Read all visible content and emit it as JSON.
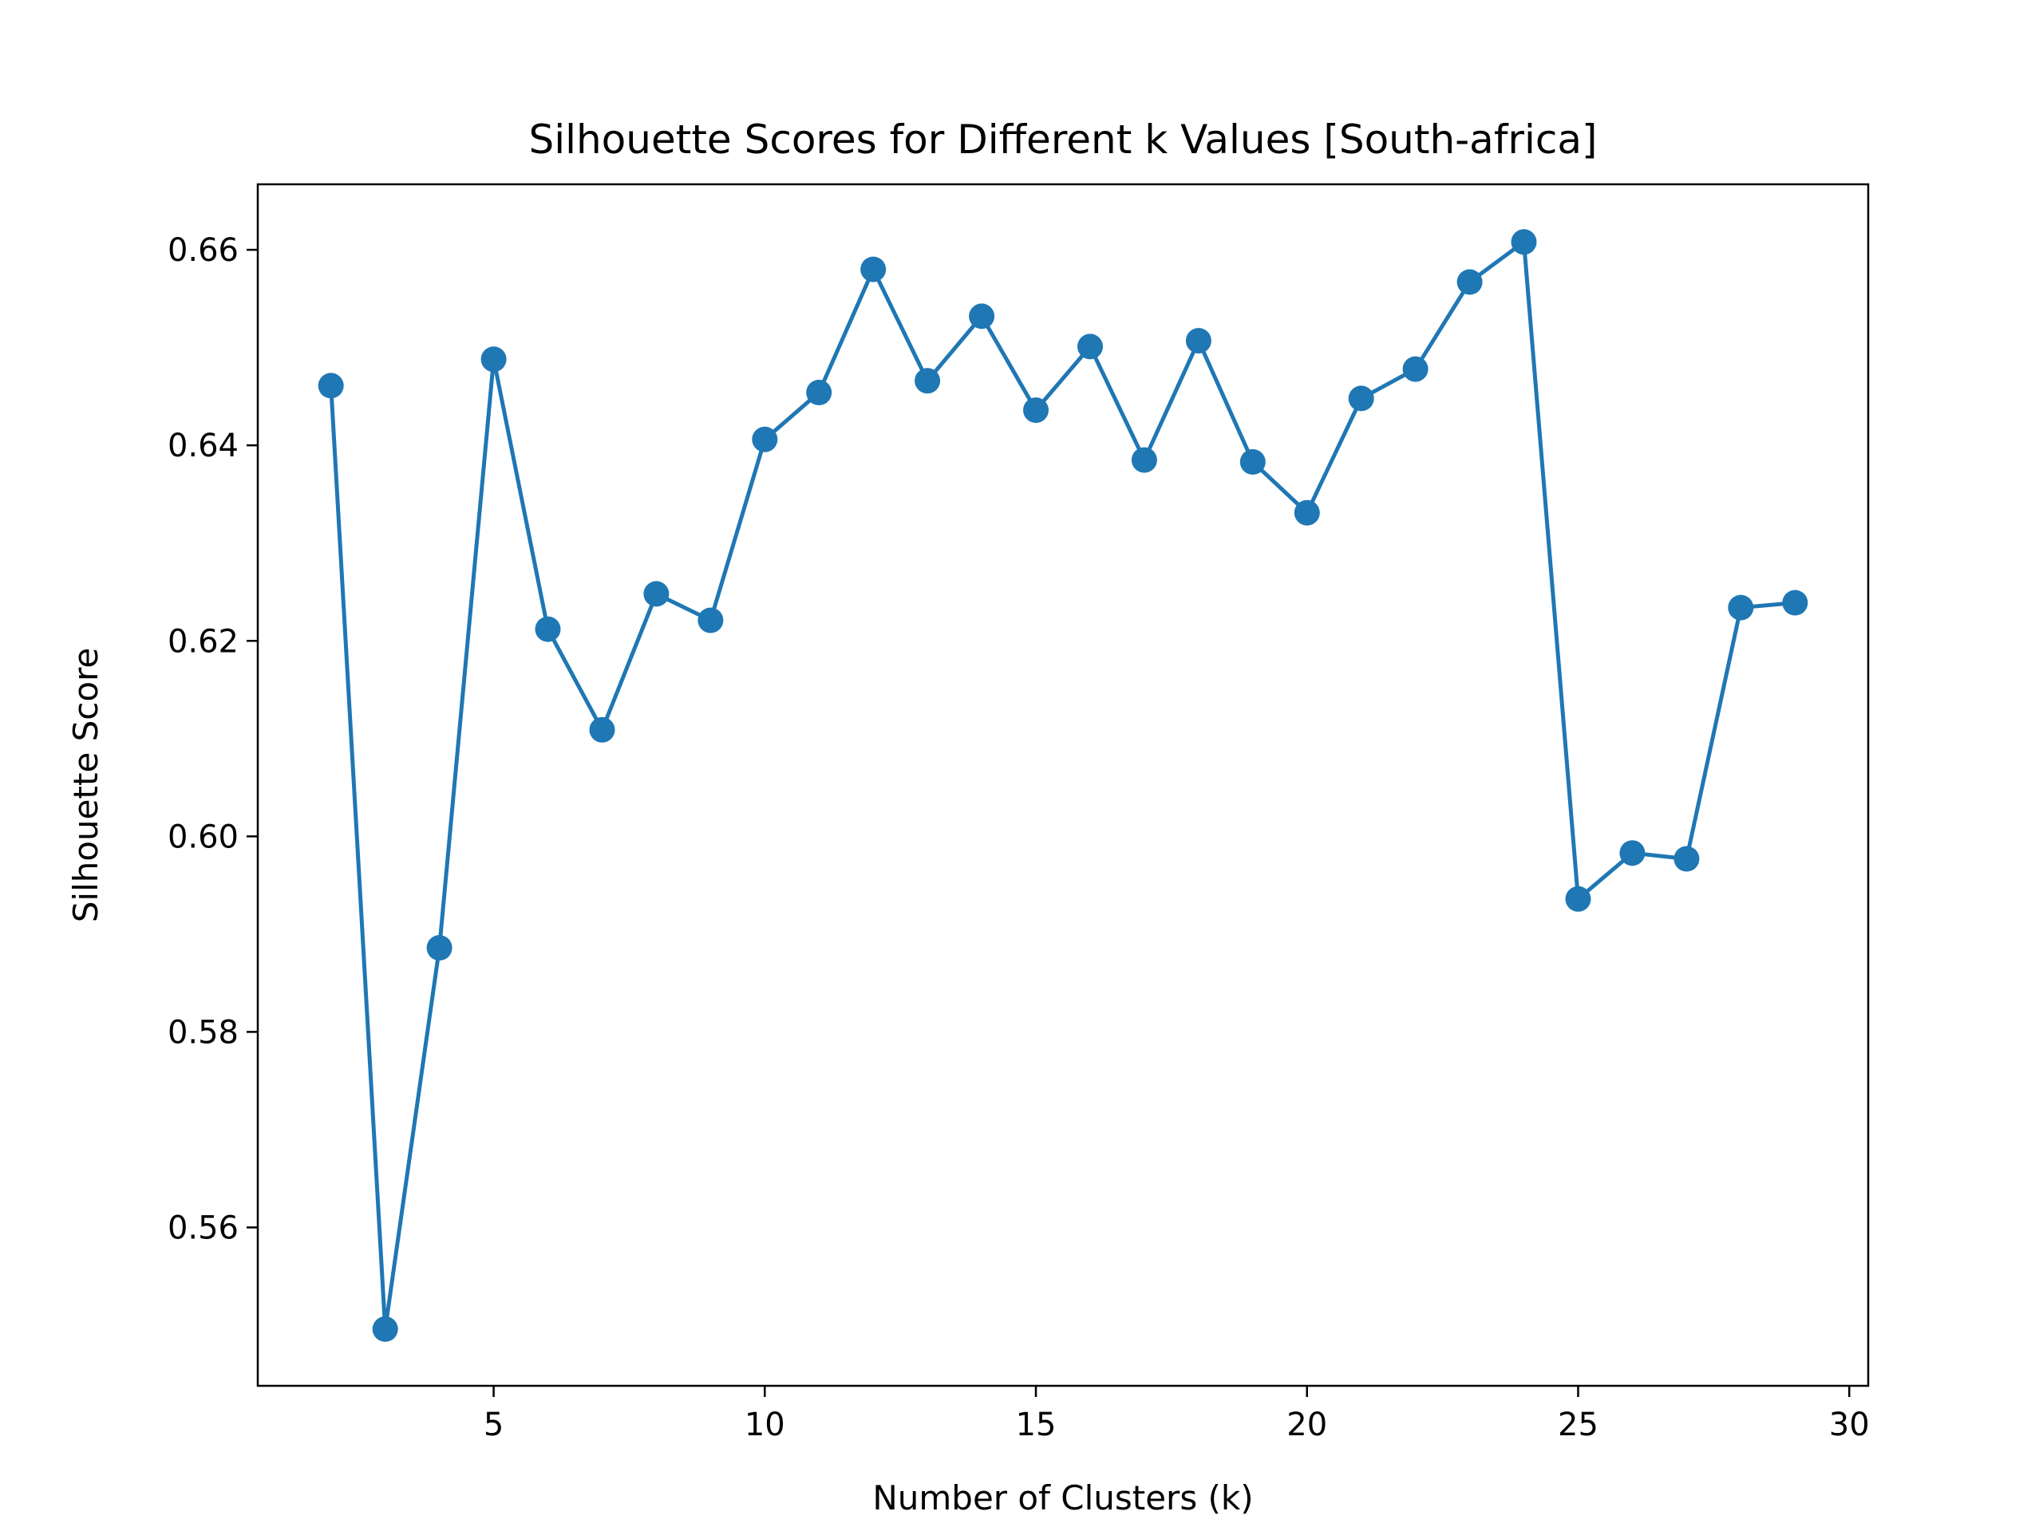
{
  "chart_data": {
    "type": "line",
    "title": "Silhouette Scores for Different k Values [South-africa]",
    "xlabel": "Number of Clusters (k)",
    "ylabel": "Silhouette Score",
    "xlim": [
      0.65,
      30.35
    ],
    "ylim": [
      0.5438,
      0.6667
    ],
    "xticks": [
      5,
      10,
      15,
      20,
      25,
      30
    ],
    "xtick_labels": [
      "5",
      "10",
      "15",
      "20",
      "25",
      "30"
    ],
    "yticks": [
      0.56,
      0.58,
      0.6,
      0.62,
      0.64,
      0.66
    ],
    "ytick_labels": [
      "0.56",
      "0.58",
      "0.60",
      "0.62",
      "0.64",
      "0.66"
    ],
    "grid": false,
    "marker": "circle",
    "series": [
      {
        "color": "#1f77b4",
        "x": [
          2,
          3,
          4,
          5,
          6,
          7,
          8,
          9,
          10,
          11,
          12,
          13,
          14,
          15,
          16,
          17,
          18,
          19,
          20,
          21,
          22,
          23,
          24,
          25,
          26,
          27,
          28,
          29
        ],
        "y": [
          0.6461,
          0.5496,
          0.5886,
          0.6488,
          0.6212,
          0.6109,
          0.6248,
          0.6221,
          0.6406,
          0.6454,
          0.658,
          0.6466,
          0.6532,
          0.6436,
          0.6501,
          0.6385,
          0.6507,
          0.6383,
          0.6331,
          0.6448,
          0.6478,
          0.6567,
          0.6608,
          0.5936,
          0.5983,
          0.5977,
          0.6234,
          0.6239
        ]
      }
    ]
  }
}
